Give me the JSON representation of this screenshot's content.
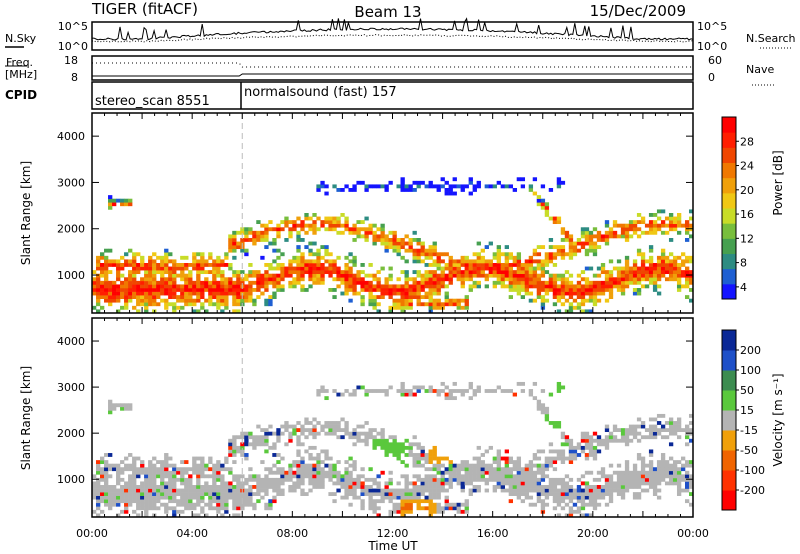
{
  "header": {
    "station": "TIGER (fitACF)",
    "beam": "Beam 13",
    "date": "15/Dec/2009"
  },
  "noise_panel": {
    "left_label": "N.Sky",
    "right_label": "N.Search",
    "left_ticks": [
      "10^5",
      "10^0"
    ],
    "right_ticks": [
      "10^5",
      "10^0"
    ]
  },
  "freq_panel": {
    "left_label_1": "Freq.",
    "left_label_2": "[MHz]",
    "right_label": "Nave",
    "left_ticks": [
      "18",
      "8"
    ],
    "right_ticks": [
      "60",
      "0"
    ]
  },
  "cpid_panel": {
    "label": "CPID",
    "programs": [
      {
        "name": "stereo_scan 8551",
        "start_hour": 0
      },
      {
        "name": "normalsound (fast) 157",
        "start_hour": 6
      }
    ]
  },
  "chart_data": [
    {
      "type": "heatmap",
      "panel": "power",
      "xlabel": "",
      "ylabel": "Slant Range [km]",
      "ylim": [
        180,
        4500
      ],
      "xlim_hours": [
        0,
        24
      ],
      "yticks": [
        1000,
        2000,
        3000,
        4000
      ],
      "colorbar": {
        "label": "Power [dB]",
        "ticks": [
          "28",
          "24",
          "20",
          "16",
          "12",
          "8",
          "4"
        ],
        "range": [
          0,
          30
        ],
        "colors": [
          "#1414ff",
          "#1e5fd2",
          "#2d8c82",
          "#46a050",
          "#78be3c",
          "#c8dc28",
          "#f0c814",
          "#f0a00a",
          "#f07800",
          "#f04600",
          "#ff1e00",
          "#ff0000"
        ]
      }
    },
    {
      "type": "heatmap",
      "panel": "velocity",
      "xlabel": "Time UT",
      "ylabel": "Slant Range [km]",
      "ylim": [
        180,
        4500
      ],
      "xlim_hours": [
        0,
        24
      ],
      "xticks": [
        "00:00",
        "04:00",
        "08:00",
        "12:00",
        "16:00",
        "20:00",
        "00:00"
      ],
      "yticks": [
        1000,
        2000,
        3000,
        4000
      ],
      "colorbar": {
        "label": "Velocity [m s⁻¹]",
        "ticks": [
          "200",
          "100",
          "50",
          "15",
          "-15",
          "-50",
          "-100",
          "-200"
        ],
        "colors": [
          "#0a2896",
          "#1e50c8",
          "#3c8c50",
          "#5ac83c",
          "#b4b4b4",
          "#f0a00a",
          "#f06400",
          "#ff3200",
          "#ff0000"
        ]
      }
    }
  ]
}
